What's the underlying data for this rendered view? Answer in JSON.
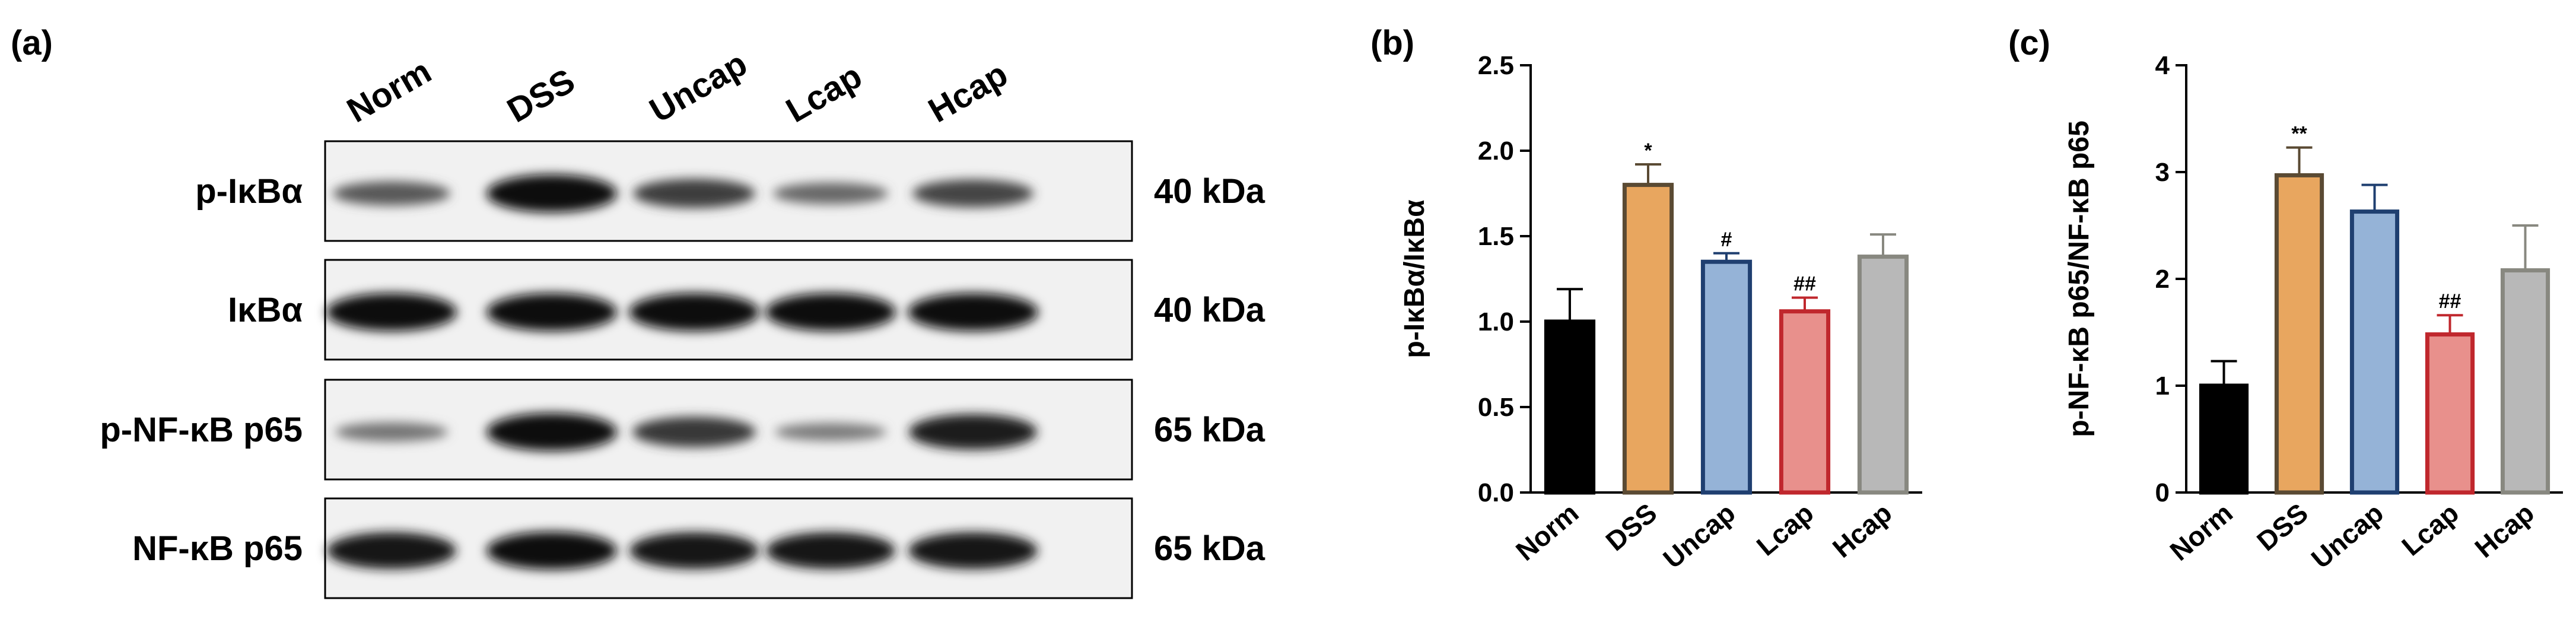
{
  "panels": {
    "a": "(a)",
    "b": "(b)",
    "c": "(c)"
  },
  "blot": {
    "lanes": [
      "Norm",
      "DSS",
      "Uncap",
      "Lcap",
      "Hcap"
    ],
    "rows": [
      {
        "protein": "p-IκBα",
        "weight": "40 kDa",
        "intensity": [
          0.45,
          1.0,
          0.65,
          0.35,
          0.6
        ]
      },
      {
        "protein": "IκBα",
        "weight": "40 kDa",
        "intensity": [
          1.0,
          1.0,
          1.0,
          1.0,
          1.0
        ]
      },
      {
        "protein": "p-NF-κB p65",
        "weight": "65 kDa",
        "intensity": [
          0.25,
          1.0,
          0.7,
          0.2,
          0.9
        ]
      },
      {
        "protein": "NF-κB p65",
        "weight": "65 kDa",
        "intensity": [
          0.95,
          1.0,
          0.95,
          0.95,
          0.95
        ]
      }
    ]
  },
  "chart_data": [
    {
      "type": "bar",
      "panel": "(b)",
      "categories": [
        "Norm",
        "DSS",
        "Uncap",
        "Lcap",
        "Hcap"
      ],
      "values": [
        1.0,
        1.8,
        1.35,
        1.06,
        1.38
      ],
      "errors": [
        0.19,
        0.12,
        0.05,
        0.08,
        0.13
      ],
      "annotations": [
        "",
        "*",
        "#",
        "##",
        ""
      ],
      "ylabel": "p-IκBα/IκBα",
      "xlabel": "",
      "ylim": [
        0,
        2.5
      ],
      "yticks": [
        "0.0",
        "0.5",
        "1.0",
        "1.5",
        "2.0",
        "2.5"
      ],
      "fill_colors": [
        "#000000",
        "#e8a65f",
        "#95b3d7",
        "#e8908c",
        "#b8b8b8"
      ],
      "edge_colors": [
        "#000000",
        "#5a4a33",
        "#1f3f70",
        "#c0272d",
        "#888880"
      ]
    },
    {
      "type": "bar",
      "panel": "(c)",
      "categories": [
        "Norm",
        "DSS",
        "Uncap",
        "Lcap",
        "Hcap"
      ],
      "values": [
        1.0,
        2.97,
        2.63,
        1.48,
        2.08
      ],
      "errors": [
        0.23,
        0.26,
        0.25,
        0.18,
        0.42
      ],
      "annotations": [
        "",
        "**",
        "",
        "##",
        ""
      ],
      "ylabel": "p-NF-κB p65/NF-κB p65",
      "xlabel": "",
      "ylim": [
        0,
        4
      ],
      "yticks": [
        "0",
        "1",
        "2",
        "3",
        "4"
      ],
      "fill_colors": [
        "#000000",
        "#e8a65f",
        "#95b3d7",
        "#e8908c",
        "#b8b8b8"
      ],
      "edge_colors": [
        "#000000",
        "#5a4a33",
        "#1f3f70",
        "#c0272d",
        "#888880"
      ]
    }
  ]
}
